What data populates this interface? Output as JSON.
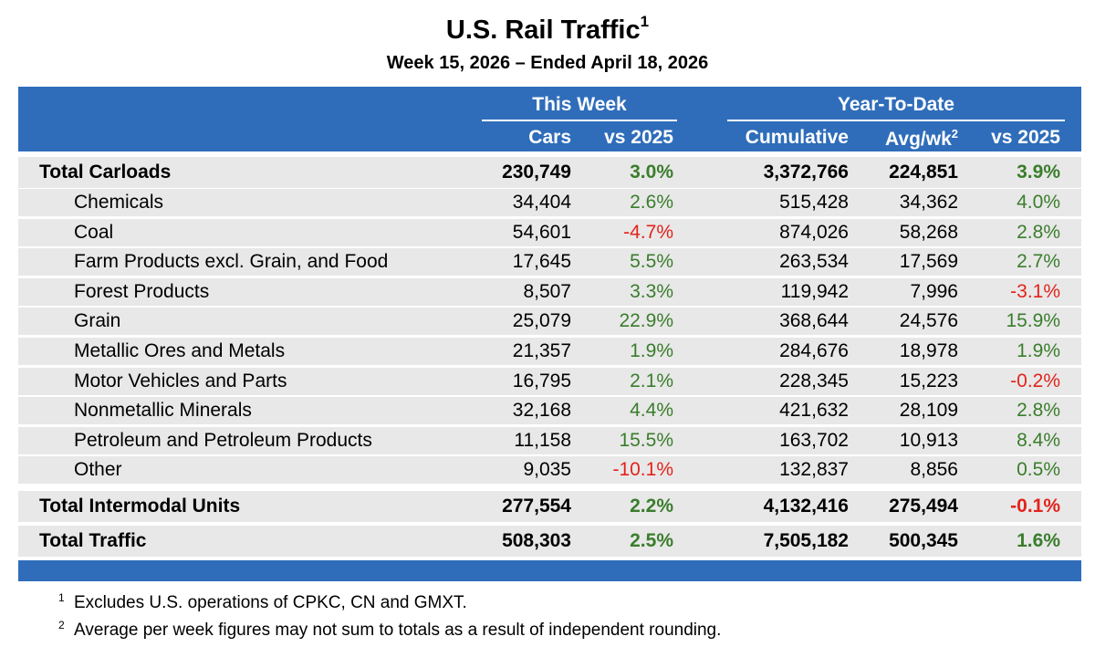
{
  "title": "U.S. Rail Traffic",
  "title_footnote_mark": "1",
  "subtitle": "Week 15, 2026 – Ended April 18, 2026",
  "colors": {
    "header_blue": "#2f6dba",
    "row_gray": "#e8e8e8",
    "positive": "#3a7d2c",
    "negative": "#e3231c"
  },
  "header": {
    "this_week": "This Week",
    "ytd": "Year-To-Date",
    "cars": "Cars",
    "vs_week": "vs 2025",
    "cumulative": "Cumulative",
    "avg_wk": "Avg/wk",
    "avg_wk_mark": "2",
    "vs_ytd": "vs 2025"
  },
  "rows": [
    {
      "label": "Total Carloads",
      "total": true,
      "cars": "230,749",
      "vs_week": "3.0%",
      "cumulative": "3,372,766",
      "avg_wk": "224,851",
      "vs_ytd": "3.9%"
    },
    {
      "label": "Chemicals",
      "cars": "34,404",
      "vs_week": "2.6%",
      "cumulative": "515,428",
      "avg_wk": "34,362",
      "vs_ytd": "4.0%"
    },
    {
      "label": "Coal",
      "cars": "54,601",
      "vs_week": "-4.7%",
      "cumulative": "874,026",
      "avg_wk": "58,268",
      "vs_ytd": "2.8%"
    },
    {
      "label": "Farm Products excl. Grain, and Food",
      "cars": "17,645",
      "vs_week": "5.5%",
      "cumulative": "263,534",
      "avg_wk": "17,569",
      "vs_ytd": "2.7%"
    },
    {
      "label": "Forest Products",
      "cars": "8,507",
      "vs_week": "3.3%",
      "cumulative": "119,942",
      "avg_wk": "7,996",
      "vs_ytd": "-3.1%"
    },
    {
      "label": "Grain",
      "cars": "25,079",
      "vs_week": "22.9%",
      "cumulative": "368,644",
      "avg_wk": "24,576",
      "vs_ytd": "15.9%"
    },
    {
      "label": "Metallic Ores and Metals",
      "cars": "21,357",
      "vs_week": "1.9%",
      "cumulative": "284,676",
      "avg_wk": "18,978",
      "vs_ytd": "1.9%"
    },
    {
      "label": "Motor Vehicles and Parts",
      "cars": "16,795",
      "vs_week": "2.1%",
      "cumulative": "228,345",
      "avg_wk": "15,223",
      "vs_ytd": "-0.2%"
    },
    {
      "label": "Nonmetallic Minerals",
      "cars": "32,168",
      "vs_week": "4.4%",
      "cumulative": "421,632",
      "avg_wk": "28,109",
      "vs_ytd": "2.8%"
    },
    {
      "label": "Petroleum and Petroleum Products",
      "cars": "11,158",
      "vs_week": "15.5%",
      "cumulative": "163,702",
      "avg_wk": "10,913",
      "vs_ytd": "8.4%"
    },
    {
      "label": "Other",
      "cars": "9,035",
      "vs_week": "-10.1%",
      "cumulative": "132,837",
      "avg_wk": "8,856",
      "vs_ytd": "0.5%"
    },
    {
      "label": "Total Intermodal Units",
      "total": true,
      "cars": "277,554",
      "vs_week": "2.2%",
      "cumulative": "4,132,416",
      "avg_wk": "275,494",
      "vs_ytd": "-0.1%"
    },
    {
      "label": "Total Traffic",
      "total": true,
      "cars": "508,303",
      "vs_week": "2.5%",
      "cumulative": "7,505,182",
      "avg_wk": "500,345",
      "vs_ytd": "1.6%"
    }
  ],
  "footnotes": [
    {
      "mark": "1",
      "text": "Excludes U.S. operations of CPKC, CN and GMXT."
    },
    {
      "mark": "2",
      "text": "Average per week figures may not sum to totals as a result of independent rounding."
    }
  ]
}
